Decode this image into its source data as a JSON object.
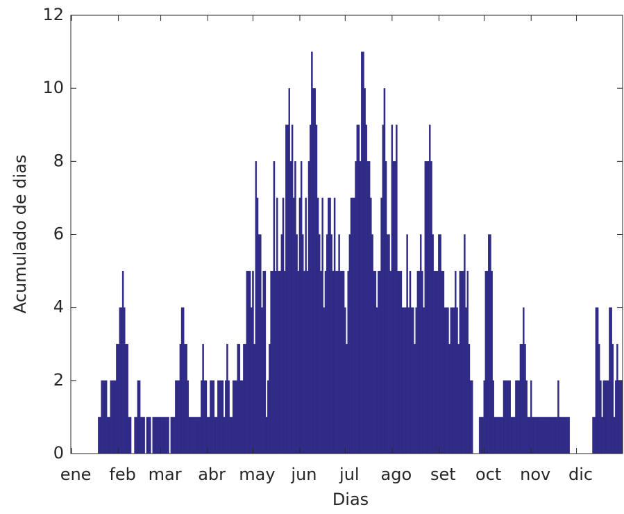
{
  "chart_data": {
    "type": "bar",
    "color": "#2f2a85",
    "x_label": "Dias",
    "y_label": "Acumulado de dias",
    "xlim": [
      0.5,
      365.5
    ],
    "ylim": [
      0,
      12
    ],
    "yticks": [
      0,
      2,
      4,
      6,
      8,
      10,
      12
    ],
    "xticks": [
      {
        "value": 1,
        "label": "ene"
      },
      {
        "value": 32,
        "label": "feb"
      },
      {
        "value": 60,
        "label": "mar"
      },
      {
        "value": 91,
        "label": "abr"
      },
      {
        "value": 121,
        "label": "may"
      },
      {
        "value": 152,
        "label": "jun"
      },
      {
        "value": 182,
        "label": "jul"
      },
      {
        "value": 213,
        "label": "ago"
      },
      {
        "value": 244,
        "label": "set"
      },
      {
        "value": 274,
        "label": "oct"
      },
      {
        "value": 305,
        "label": "nov"
      },
      {
        "value": 335,
        "label": "dic"
      }
    ],
    "x": [
      1,
      2,
      3,
      4,
      5,
      6,
      7,
      8,
      9,
      10,
      11,
      12,
      13,
      14,
      15,
      16,
      17,
      18,
      19,
      20,
      21,
      22,
      23,
      24,
      25,
      26,
      27,
      28,
      29,
      30,
      31,
      32,
      33,
      34,
      35,
      36,
      37,
      38,
      39,
      40,
      41,
      42,
      43,
      44,
      45,
      46,
      47,
      48,
      49,
      50,
      51,
      52,
      53,
      54,
      55,
      56,
      57,
      58,
      59,
      60,
      61,
      62,
      63,
      64,
      65,
      66,
      67,
      68,
      69,
      70,
      71,
      72,
      73,
      74,
      75,
      76,
      77,
      78,
      79,
      80,
      81,
      82,
      83,
      84,
      85,
      86,
      87,
      88,
      89,
      90,
      91,
      92,
      93,
      94,
      95,
      96,
      97,
      98,
      99,
      100,
      101,
      102,
      103,
      104,
      105,
      106,
      107,
      108,
      109,
      110,
      111,
      112,
      113,
      114,
      115,
      116,
      117,
      118,
      119,
      120,
      121,
      122,
      123,
      124,
      125,
      126,
      127,
      128,
      129,
      130,
      131,
      132,
      133,
      134,
      135,
      136,
      137,
      138,
      139,
      140,
      141,
      142,
      143,
      144,
      145,
      146,
      147,
      148,
      149,
      150,
      151,
      152,
      153,
      154,
      155,
      156,
      157,
      158,
      159,
      160,
      161,
      162,
      163,
      164,
      165,
      166,
      167,
      168,
      169,
      170,
      171,
      172,
      173,
      174,
      175,
      176,
      177,
      178,
      179,
      180,
      181,
      182,
      183,
      184,
      185,
      186,
      187,
      188,
      189,
      190,
      191,
      192,
      193,
      194,
      195,
      196,
      197,
      198,
      199,
      200,
      201,
      202,
      203,
      204,
      205,
      206,
      207,
      208,
      209,
      210,
      211,
      212,
      213,
      214,
      215,
      216,
      217,
      218,
      219,
      220,
      221,
      222,
      223,
      224,
      225,
      226,
      227,
      228,
      229,
      230,
      231,
      232,
      233,
      234,
      235,
      236,
      237,
      238,
      239,
      240,
      241,
      242,
      243,
      244,
      245,
      246,
      247,
      248,
      249,
      250,
      251,
      252,
      253,
      254,
      255,
      256,
      257,
      258,
      259,
      260,
      261,
      262,
      263,
      264,
      265,
      266,
      267,
      268,
      269,
      270,
      271,
      272,
      273,
      274,
      275,
      276,
      277,
      278,
      279,
      280,
      281,
      282,
      283,
      284,
      285,
      286,
      287,
      288,
      289,
      290,
      291,
      292,
      293,
      294,
      295,
      296,
      297,
      298,
      299,
      300,
      301,
      302,
      303,
      304,
      305,
      306,
      307,
      308,
      309,
      310,
      311,
      312,
      313,
      314,
      315,
      316,
      317,
      318,
      319,
      320,
      321,
      322,
      323,
      324,
      325,
      326,
      327,
      328,
      329,
      330,
      331,
      332,
      333,
      334,
      335,
      336,
      337,
      338,
      339,
      340,
      341,
      342,
      343,
      344,
      345,
      346,
      347,
      348,
      349,
      350,
      351,
      352,
      353,
      354,
      355,
      356,
      357,
      358,
      359,
      360,
      361,
      362,
      363,
      364,
      365
    ],
    "values": [
      0,
      0,
      0,
      0,
      0,
      0,
      0,
      0,
      0,
      0,
      0,
      0,
      0,
      0,
      0,
      0,
      0,
      0,
      1,
      1,
      2,
      2,
      2,
      2,
      1,
      1,
      2,
      2,
      2,
      2,
      3,
      3,
      4,
      4,
      5,
      4,
      3,
      3,
      1,
      1,
      0,
      0,
      1,
      1,
      2,
      2,
      1,
      1,
      1,
      0,
      1,
      1,
      1,
      0,
      1,
      1,
      1,
      1,
      1,
      1,
      1,
      1,
      1,
      1,
      1,
      0,
      1,
      1,
      1,
      2,
      2,
      2,
      3,
      4,
      4,
      3,
      3,
      2,
      1,
      1,
      1,
      1,
      1,
      1,
      1,
      1,
      2,
      3,
      2,
      2,
      1,
      1,
      2,
      2,
      2,
      1,
      1,
      2,
      2,
      2,
      2,
      1,
      2,
      3,
      2,
      1,
      1,
      2,
      2,
      2,
      3,
      3,
      2,
      2,
      3,
      3,
      5,
      5,
      5,
      4,
      5,
      3,
      8,
      7,
      6,
      6,
      4,
      5,
      5,
      1,
      2,
      3,
      5,
      5,
      8,
      5,
      7,
      5,
      5,
      6,
      7,
      5,
      9,
      9,
      10,
      8,
      9,
      7,
      8,
      6,
      5,
      7,
      8,
      6,
      5,
      7,
      5,
      8,
      9,
      11,
      10,
      10,
      9,
      7,
      6,
      5,
      7,
      4,
      5,
      6,
      7,
      7,
      6,
      5,
      7,
      5,
      5,
      6,
      5,
      5,
      5,
      4,
      3,
      5,
      6,
      7,
      7,
      7,
      8,
      9,
      9,
      8,
      11,
      11,
      10,
      9,
      8,
      8,
      7,
      6,
      5,
      5,
      4,
      5,
      5,
      7,
      9,
      10,
      8,
      6,
      6,
      5,
      9,
      8,
      8,
      9,
      5,
      5,
      5,
      4,
      4,
      4,
      6,
      4,
      5,
      4,
      4,
      3,
      4,
      5,
      5,
      6,
      5,
      4,
      8,
      8,
      8,
      9,
      8,
      6,
      5,
      5,
      5,
      6,
      6,
      5,
      5,
      4,
      4,
      4,
      3,
      4,
      4,
      4,
      5,
      4,
      3,
      5,
      5,
      5,
      6,
      4,
      5,
      3,
      2,
      2,
      0,
      0,
      0,
      0,
      1,
      1,
      1,
      2,
      5,
      5,
      6,
      6,
      5,
      2,
      1,
      1,
      1,
      1,
      1,
      1,
      2,
      2,
      2,
      2,
      2,
      1,
      1,
      1,
      2,
      2,
      2,
      3,
      3,
      4,
      3,
      2,
      1,
      1,
      2,
      1,
      1,
      1,
      1,
      1,
      1,
      1,
      1,
      1,
      1,
      1,
      1,
      1,
      1,
      1,
      1,
      1,
      2,
      1,
      1,
      1,
      1,
      1,
      1,
      1,
      0,
      0,
      0,
      0,
      0,
      0,
      0,
      0,
      0,
      0,
      0,
      0,
      0,
      0,
      0,
      1,
      1,
      4,
      4,
      3,
      2,
      1,
      2,
      2,
      2,
      2,
      4,
      4,
      3,
      1,
      2,
      3,
      2,
      2,
      2
    ]
  }
}
